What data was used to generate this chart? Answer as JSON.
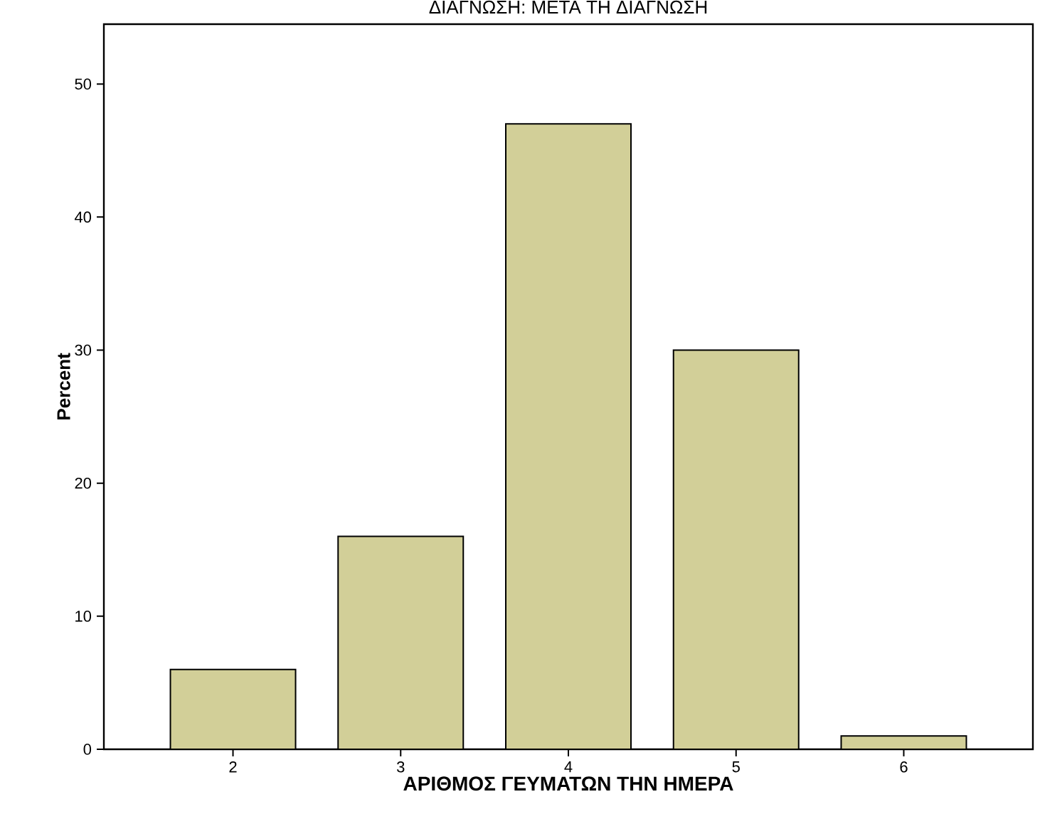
{
  "chart_data": {
    "type": "bar",
    "title": "ΔΙΑΓΝΩΣΗ: ΜΕΤΑ ΤΗ ΔΙΑΓΝΩΣΗ",
    "xlabel": "ΑΡΙΘΜΟΣ ΓΕΥΜΑΤΩΝ ΤΗΝ ΗΜΕΡΑ",
    "ylabel": "Percent",
    "categories": [
      "2",
      "3",
      "4",
      "5",
      "6"
    ],
    "values": [
      6,
      16,
      47,
      30,
      1
    ],
    "color": "#d2cf98",
    "ylim": [
      0,
      54.5
    ],
    "yticks": [
      0,
      10,
      20,
      30,
      40,
      50
    ],
    "grid": false
  }
}
